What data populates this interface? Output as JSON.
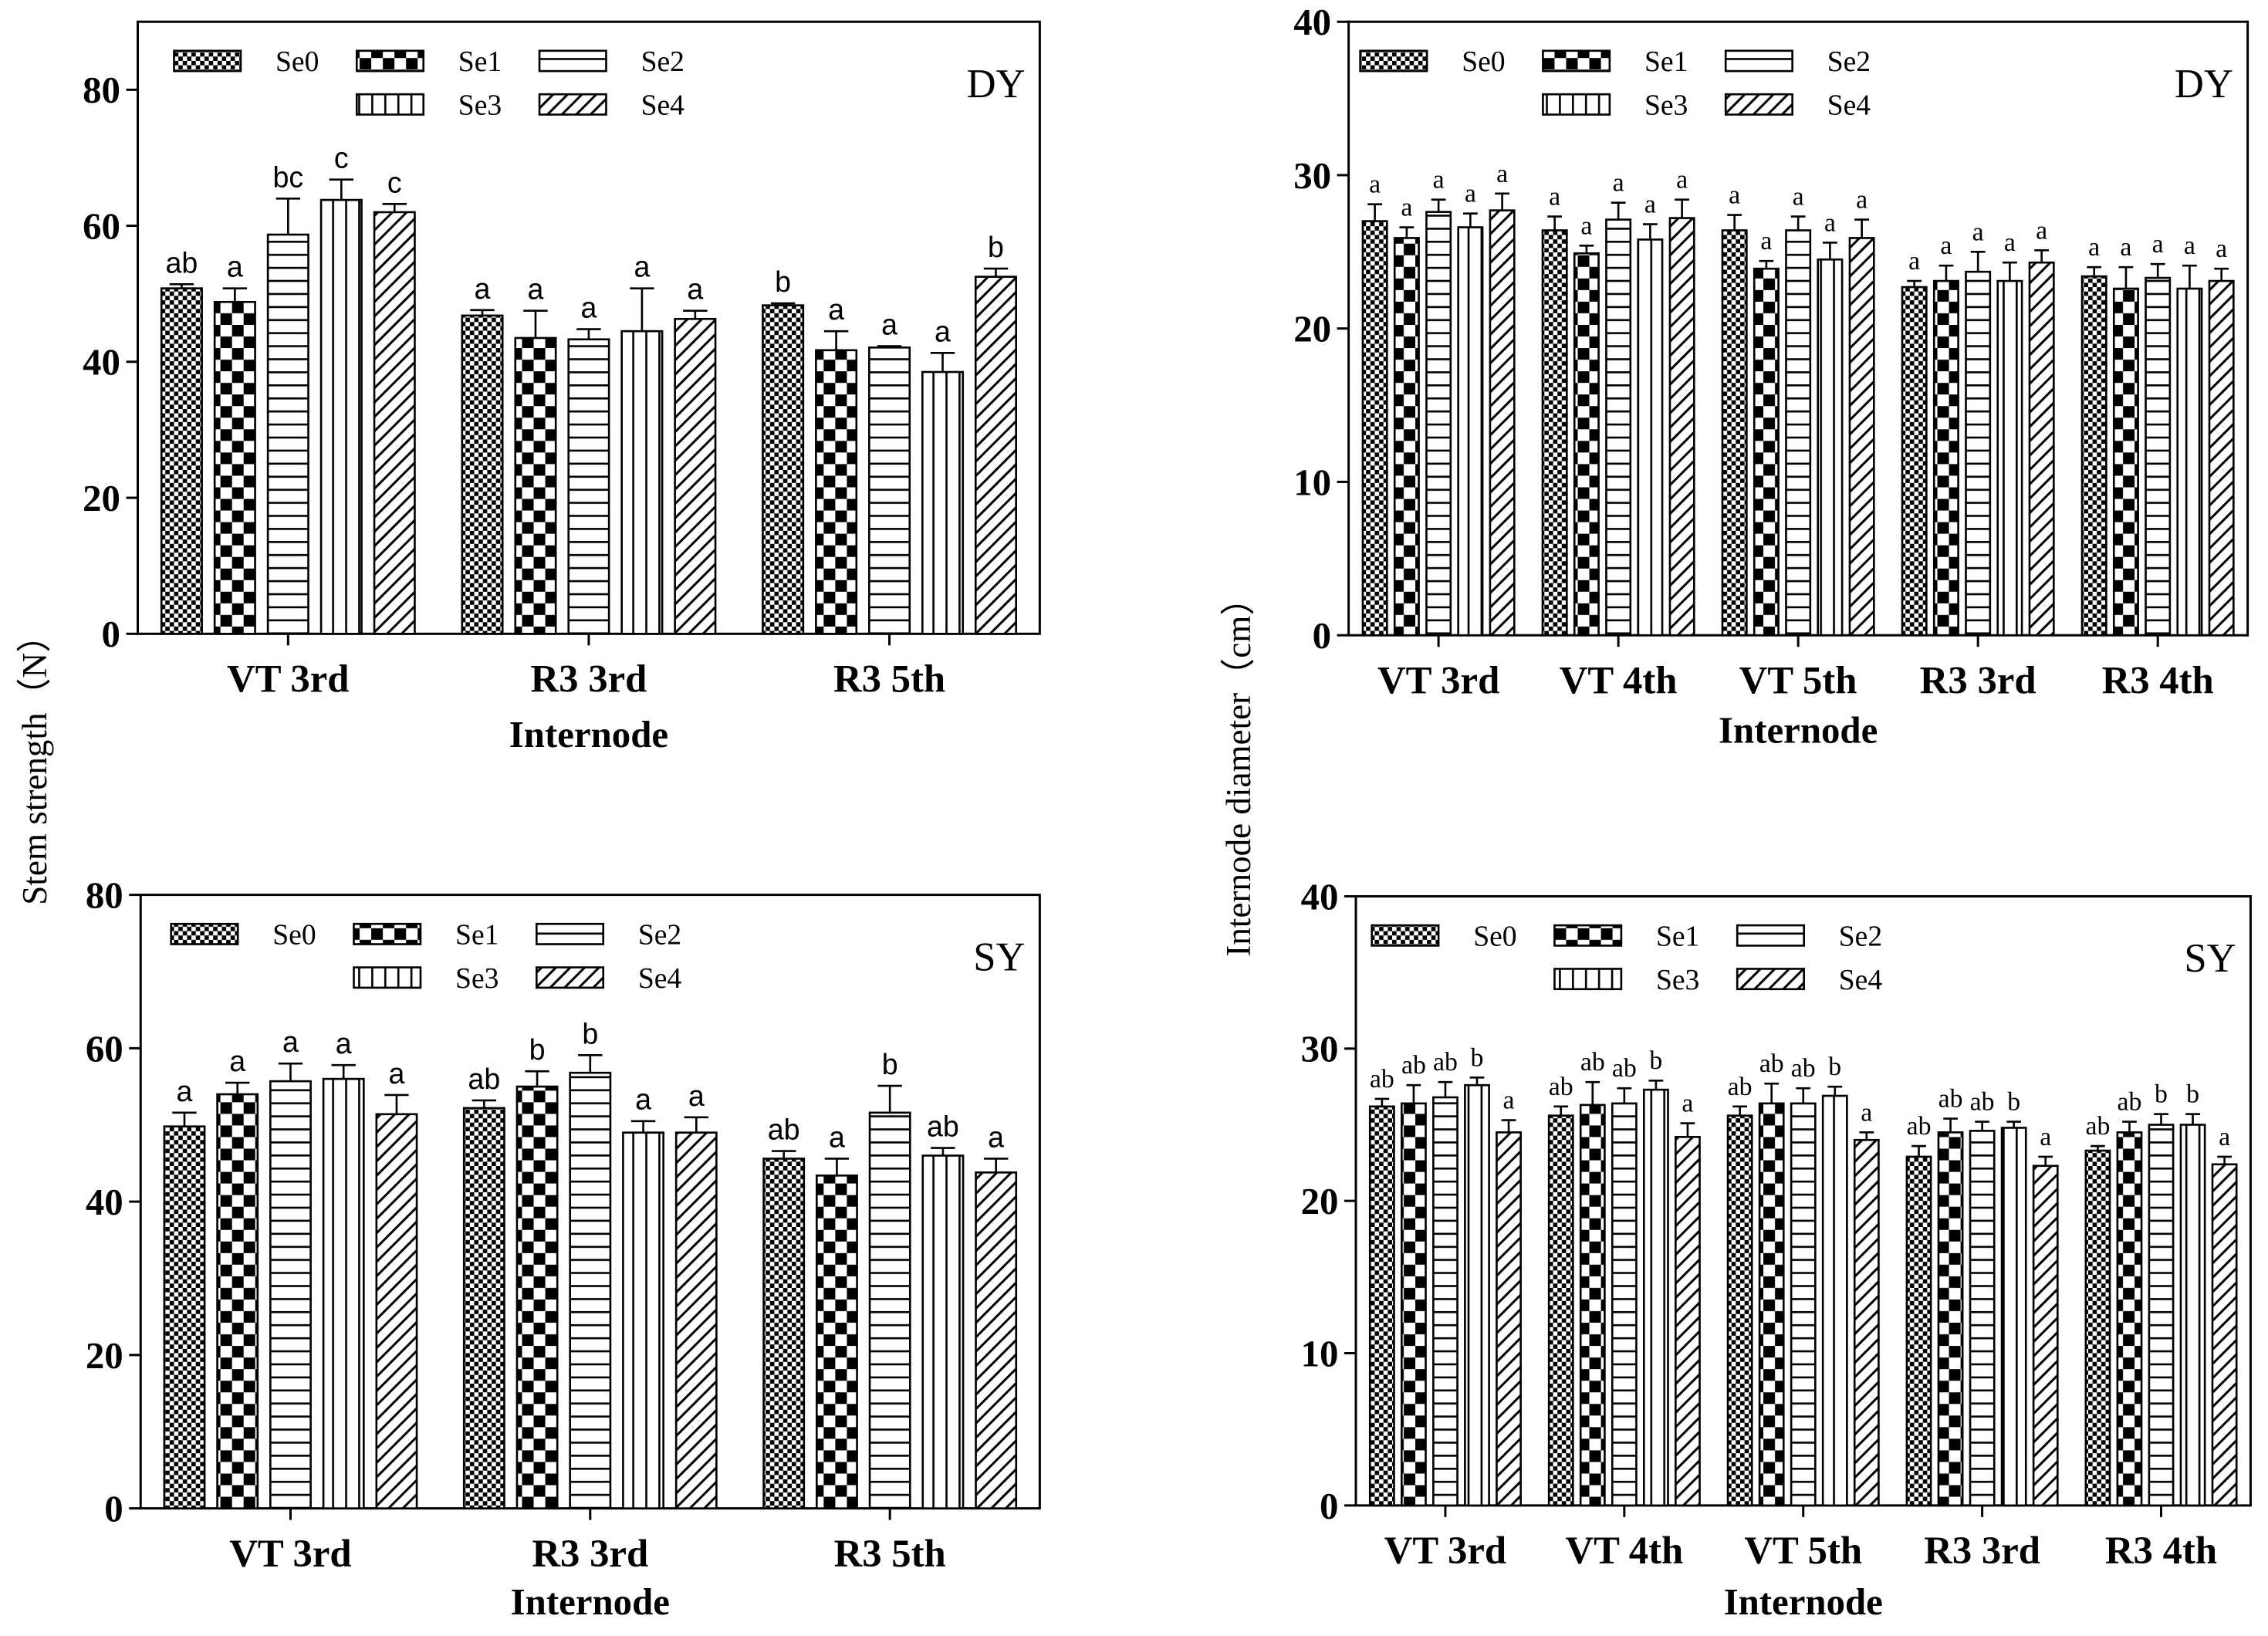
{
  "chart_data": [
    {
      "type": "bar",
      "panel_label": "DY",
      "ylabel": "Stem strength（N）",
      "xlabel": "Internode",
      "ylim": [
        0,
        90
      ],
      "yticks": [
        0,
        20,
        40,
        60,
        80
      ],
      "categories": [
        "VT 3rd",
        "R3 3rd",
        "R3 5th"
      ],
      "series": [
        {
          "name": "Se0",
          "values": [
            50.8,
            46.8,
            48.3
          ],
          "errors": [
            0.6,
            0.8,
            0.3
          ],
          "letters": [
            "ab",
            "a",
            "b"
          ]
        },
        {
          "name": "Se1",
          "values": [
            48.8,
            43.5,
            41.7
          ],
          "errors": [
            2.0,
            4.0,
            2.8
          ],
          "letters": [
            "a",
            "a",
            "a"
          ]
        },
        {
          "name": "Se2",
          "values": [
            58.7,
            43.3,
            42.1
          ],
          "errors": [
            5.3,
            1.5,
            0.2
          ],
          "letters": [
            "bc",
            "a",
            "a"
          ]
        },
        {
          "name": "Se3",
          "values": [
            63.8,
            44.5,
            38.5
          ],
          "errors": [
            3.0,
            6.3,
            2.8
          ],
          "letters": [
            "c",
            "a",
            "a"
          ]
        },
        {
          "name": "Se4",
          "values": [
            62.0,
            46.3,
            52.5
          ],
          "errors": [
            1.2,
            1.2,
            1.2
          ],
          "letters": [
            "c",
            "a",
            "b"
          ]
        }
      ]
    },
    {
      "type": "bar",
      "panel_label": "DY",
      "ylabel": "Internode diameter（cm）",
      "xlabel": "Internode",
      "ylim": [
        0,
        40
      ],
      "yticks": [
        0,
        10,
        20,
        30,
        40
      ],
      "categories": [
        "VT 3rd",
        "VT 4th",
        "VT 5th",
        "R3 3rd",
        "R3 4th"
      ],
      "series": [
        {
          "name": "Se0",
          "values": [
            27.0,
            26.4,
            26.4,
            22.7,
            23.4
          ],
          "errors": [
            1.1,
            0.9,
            1.0,
            0.4,
            0.6
          ],
          "letters": [
            "a",
            "a",
            "a",
            "a",
            "a"
          ]
        },
        {
          "name": "Se1",
          "values": [
            25.9,
            24.9,
            23.9,
            23.1,
            22.6
          ],
          "errors": [
            0.7,
            0.5,
            0.5,
            1.0,
            1.4
          ],
          "letters": [
            "a",
            "a",
            "a",
            "a",
            "a"
          ]
        },
        {
          "name": "Se2",
          "values": [
            27.6,
            27.1,
            26.4,
            23.7,
            23.3
          ],
          "errors": [
            0.8,
            1.1,
            0.9,
            1.3,
            0.9
          ],
          "letters": [
            "a",
            "a",
            "a",
            "a",
            "a"
          ]
        },
        {
          "name": "Se3",
          "values": [
            26.6,
            25.8,
            24.5,
            23.1,
            22.6
          ],
          "errors": [
            0.9,
            1.0,
            1.1,
            1.2,
            1.5
          ],
          "letters": [
            "a",
            "a",
            "a",
            "a",
            "a"
          ]
        },
        {
          "name": "Se4",
          "values": [
            27.7,
            27.2,
            25.9,
            24.3,
            23.1
          ],
          "errors": [
            1.1,
            1.2,
            1.2,
            0.8,
            0.8
          ],
          "letters": [
            "a",
            "a",
            "a",
            "a",
            "a"
          ]
        }
      ]
    },
    {
      "type": "bar",
      "panel_label": "SY",
      "ylabel": "Stem strength（N）",
      "xlabel": "Internode",
      "ylim": [
        0,
        80
      ],
      "yticks": [
        0,
        20,
        40,
        60,
        80
      ],
      "categories": [
        "VT 3rd",
        "R3 3rd",
        "R3 5th"
      ],
      "series": [
        {
          "name": "Se0",
          "values": [
            49.8,
            52.2,
            45.6
          ],
          "errors": [
            1.8,
            1.0,
            1.0
          ],
          "letters": [
            "a",
            "ab",
            "ab"
          ]
        },
        {
          "name": "Se1",
          "values": [
            54.0,
            55.0,
            43.4
          ],
          "errors": [
            1.5,
            2.0,
            2.2
          ],
          "letters": [
            "a",
            "b",
            "a"
          ]
        },
        {
          "name": "Se2",
          "values": [
            55.7,
            56.8,
            51.6
          ],
          "errors": [
            2.3,
            2.3,
            3.5
          ],
          "letters": [
            "a",
            "b",
            "b"
          ]
        },
        {
          "name": "Se3",
          "values": [
            56.0,
            49.0,
            46.0
          ],
          "errors": [
            1.8,
            1.5,
            1.0
          ],
          "letters": [
            "a",
            "a",
            "ab"
          ]
        },
        {
          "name": "Se4",
          "values": [
            51.4,
            49.0,
            43.8
          ],
          "errors": [
            2.5,
            2.0,
            1.8
          ],
          "letters": [
            "a",
            "a",
            "a"
          ]
        }
      ]
    },
    {
      "type": "bar",
      "panel_label": "SY",
      "ylabel": "Internode diameter（cm）",
      "xlabel": "Internode",
      "ylim": [
        0,
        40
      ],
      "yticks": [
        0,
        10,
        20,
        30,
        40
      ],
      "categories": [
        "VT 3rd",
        "VT 4th",
        "VT 5th",
        "R3 3rd",
        "R3 4th"
      ],
      "series": [
        {
          "name": "Se0",
          "values": [
            26.2,
            25.6,
            25.6,
            22.9,
            23.3
          ],
          "errors": [
            0.5,
            0.6,
            0.6,
            0.7,
            0.3
          ],
          "letters": [
            "ab",
            "ab",
            "ab",
            "ab",
            "ab"
          ]
        },
        {
          "name": "Se1",
          "values": [
            26.4,
            26.3,
            26.4,
            24.5,
            24.5
          ],
          "errors": [
            1.2,
            1.5,
            1.3,
            0.9,
            0.7
          ],
          "letters": [
            "ab",
            "ab",
            "ab",
            "ab",
            "ab"
          ]
        },
        {
          "name": "Se2",
          "values": [
            26.8,
            26.4,
            26.4,
            24.6,
            25.0
          ],
          "errors": [
            1.0,
            1.0,
            1.0,
            0.6,
            0.7
          ],
          "letters": [
            "ab",
            "ab",
            "ab",
            "ab",
            "b"
          ]
        },
        {
          "name": "Se3",
          "values": [
            27.6,
            27.3,
            26.9,
            24.8,
            25.0
          ],
          "errors": [
            0.5,
            0.6,
            0.6,
            0.4,
            0.7
          ],
          "letters": [
            "b",
            "b",
            "b",
            "b",
            "b"
          ]
        },
        {
          "name": "Se4",
          "values": [
            24.5,
            24.2,
            24.0,
            22.3,
            22.4
          ],
          "errors": [
            0.8,
            0.9,
            0.5,
            0.6,
            0.5
          ],
          "letters": [
            "a",
            "a",
            "a",
            "a",
            "a"
          ]
        }
      ]
    }
  ],
  "shared_ylabels": {
    "left": "Stem strength（N）",
    "right": "Internode diameter（cm）"
  }
}
